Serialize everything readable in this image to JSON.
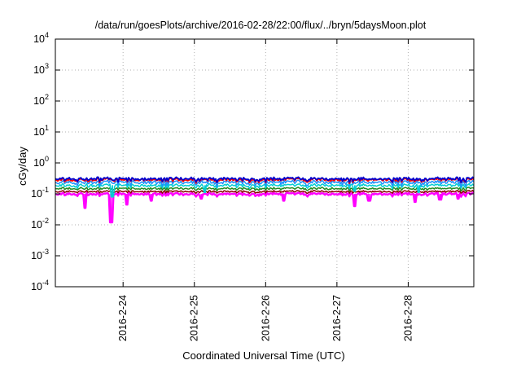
{
  "chart_data": {
    "type": "line",
    "title": "/data/run/goesPlots/archive/2016-02-28/22:00/flux/../bryn/5daysMoon.plot",
    "xlabel": "Coordinated Universal Time (UTC)",
    "ylabel": "cGy/day",
    "yscale": "log",
    "ylim": [
      0.0001,
      10000
    ],
    "yticks": [
      {
        "value": 0.0001,
        "base": "10",
        "exp": "-4"
      },
      {
        "value": 0.001,
        "base": "10",
        "exp": "-3"
      },
      {
        "value": 0.01,
        "base": "10",
        "exp": "-2"
      },
      {
        "value": 0.1,
        "base": "10",
        "exp": "-1"
      },
      {
        "value": 1,
        "base": "10",
        "exp": "0"
      },
      {
        "value": 10,
        "base": "10",
        "exp": "1"
      },
      {
        "value": 100,
        "base": "10",
        "exp": "2"
      },
      {
        "value": 1000,
        "base": "10",
        "exp": "3"
      },
      {
        "value": 10000,
        "base": "10",
        "exp": "4"
      }
    ],
    "xlim": [
      23.05,
      28.92
    ],
    "xticks": [
      {
        "value": 24,
        "label": "2016-2-24"
      },
      {
        "value": 25,
        "label": "2016-2-25"
      },
      {
        "value": 26,
        "label": "2016-2-26"
      },
      {
        "value": 27,
        "label": "2016-2-27"
      },
      {
        "value": 28,
        "label": "2016-2-28"
      }
    ],
    "grid": true,
    "legend": false,
    "series": [
      {
        "color": "#ff00ff",
        "base": 0.1,
        "noise": 0.08,
        "dips": [
          [
            23.47,
            0.035
          ],
          [
            23.83,
            0.012
          ],
          [
            24.05,
            0.045
          ],
          [
            24.4,
            0.06
          ],
          [
            25.1,
            0.07
          ],
          [
            26.25,
            0.06
          ],
          [
            27.25,
            0.04
          ],
          [
            27.45,
            0.06
          ],
          [
            28.1,
            0.055
          ],
          [
            28.45,
            0.065
          ],
          [
            28.7,
            0.07
          ]
        ],
        "fill": true
      },
      {
        "color": "#8b0000",
        "base": 0.12,
        "noise": 0.06,
        "dips": [],
        "fill": false
      },
      {
        "color": "#228b22",
        "base": 0.15,
        "noise": 0.07,
        "dips": [],
        "fill": false
      },
      {
        "color": "#00ced1",
        "base": 0.19,
        "noise": 0.1,
        "dips": [
          [
            23.85,
            0.08
          ],
          [
            25.15,
            0.11
          ],
          [
            27.25,
            0.12
          ],
          [
            28.15,
            0.11
          ]
        ],
        "fill": false
      },
      {
        "color": "#1e90ff",
        "base": 0.24,
        "noise": 0.12,
        "dips": [],
        "fill": false
      },
      {
        "color": "#ff0000",
        "base": 0.29,
        "noise": 0.1,
        "dips": [],
        "fill": false
      },
      {
        "color": "#0000cd",
        "base": 0.31,
        "noise": 0.1,
        "dips": [],
        "fill": false
      }
    ]
  }
}
